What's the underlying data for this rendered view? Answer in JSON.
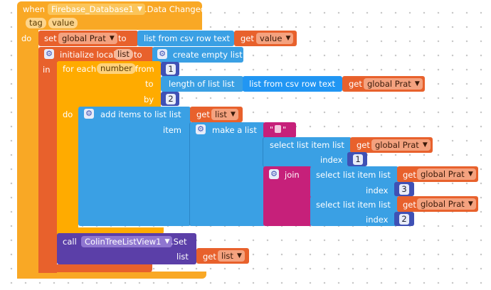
{
  "event": {
    "when_label": "when",
    "component": "Firebase_Database1",
    "event_name": ".Data Changed",
    "params": [
      "tag",
      "value"
    ],
    "do_label": "do"
  },
  "set_global": {
    "set_label": "set",
    "var_name": "global Prat",
    "to_label": "to",
    "csv_label": "list from csv row  text",
    "get_label": "get",
    "get_var": "value"
  },
  "init_local": {
    "label": "initialize local",
    "var_name": "list",
    "to_label": "to",
    "in_label": "in",
    "create_label": "create empty list"
  },
  "for_each": {
    "label": "for each",
    "var_name": "number",
    "from_label": "from",
    "from_value": "1",
    "to_label": "to",
    "length_label": "length of list  list",
    "csv_label": "list from csv row  text",
    "get_label": "get",
    "get_var": "global Prat",
    "by_label": "by",
    "by_value": "2",
    "do_label": "do"
  },
  "add_items": {
    "label": "add items to list  list",
    "get_label": "get",
    "get_var": "list",
    "item_label": "item",
    "make_list_label": "make a list",
    "text_open": "\"",
    "text_close": "\"",
    "select1": {
      "label": "select list item  list",
      "get_label": "get",
      "get_var": "global Prat",
      "index_label": "index",
      "index_value": "1"
    },
    "join_label": "join",
    "select2": {
      "label": "select list item  list",
      "get_label": "get",
      "get_var": "global Prat",
      "index_label": "index",
      "index_value": "3"
    },
    "select3": {
      "label": "select list item  list",
      "get_label": "get",
      "get_var": "global Prat",
      "index_label": "index",
      "index_value": "2"
    }
  },
  "call_block": {
    "call_label": "call",
    "component": "ColinTreeListView1",
    "method": ".Set",
    "list_label": "list",
    "get_label": "get",
    "get_var": "list"
  },
  "colors": {
    "event": "#f9a825",
    "variable": "#e8612c",
    "list": "#3aa0e4",
    "control": "#ffab00",
    "math": "#3f51b5",
    "text": "#c6207a",
    "component": "#5b3fa8"
  },
  "icons": {
    "dropdown": "dropdown-caret-icon",
    "mutator": "gear-icon"
  }
}
